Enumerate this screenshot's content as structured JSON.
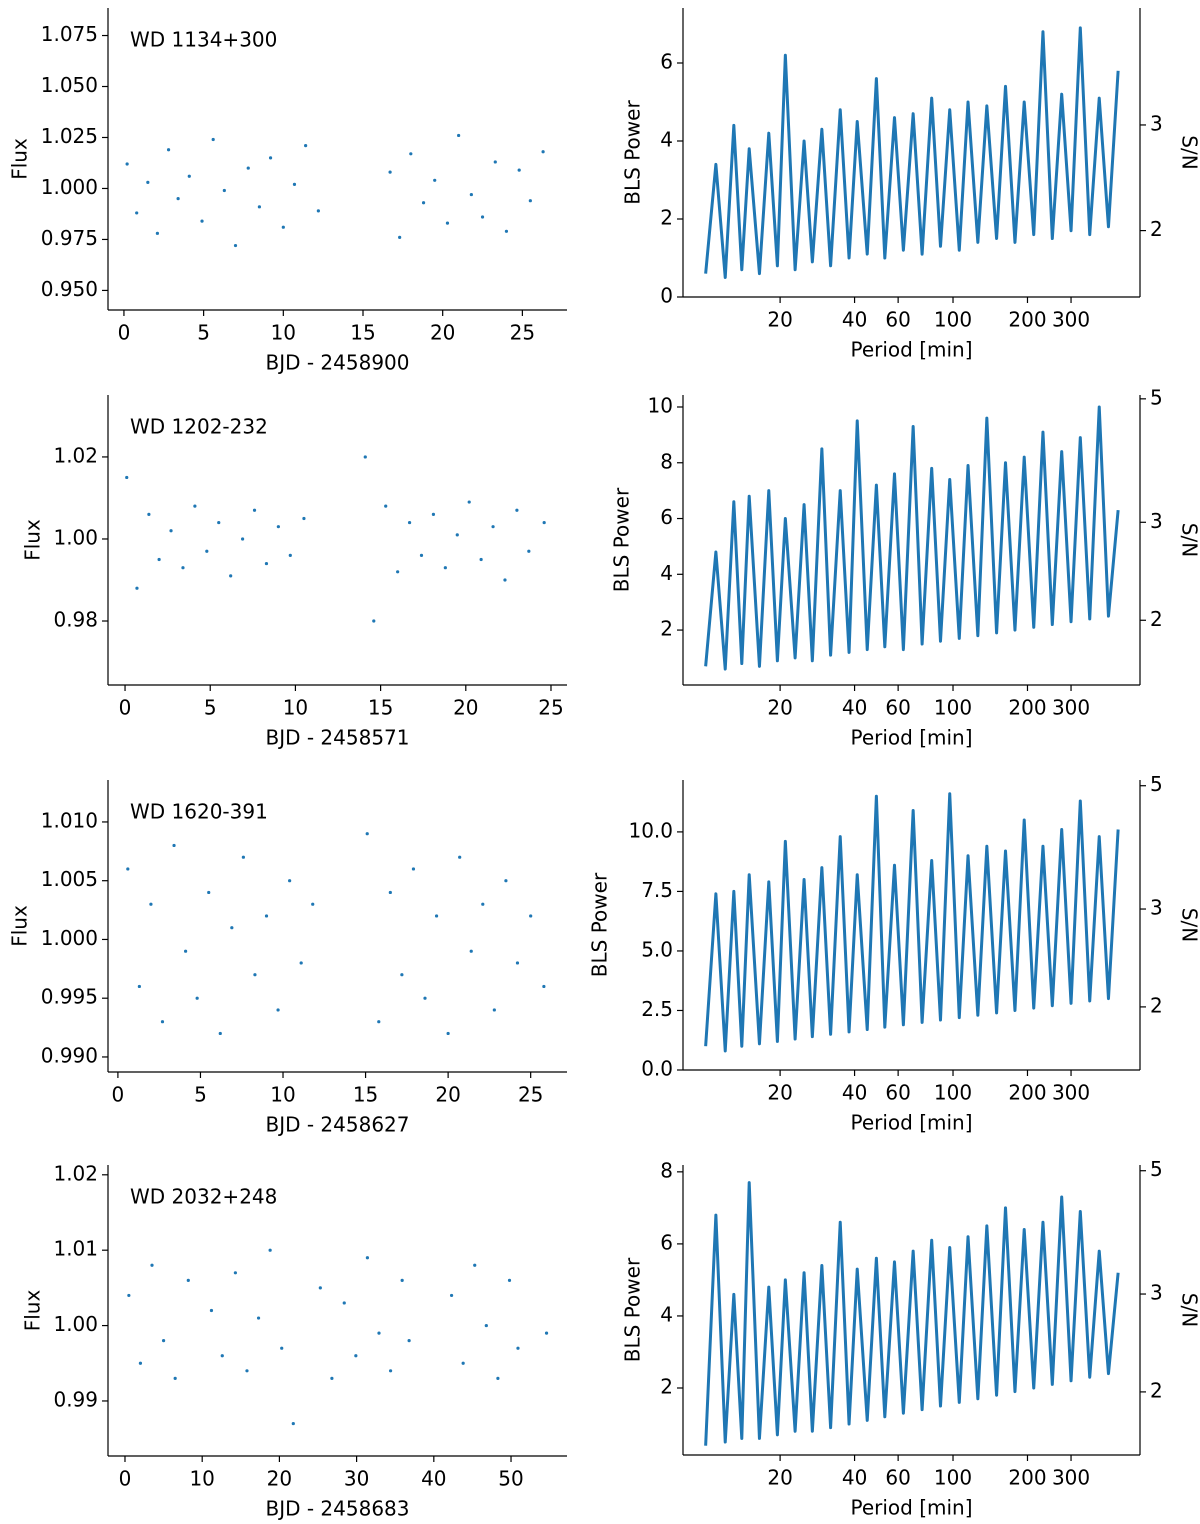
{
  "chart_data": [
    {
      "type": "scatter",
      "annotation": "WD 1134+300",
      "xlabel": "BJD - 2458900",
      "ylabel": "Flux",
      "color": "#1f77b4",
      "x": [
        0.2,
        0.8,
        1.5,
        2.1,
        2.8,
        3.4,
        4.1,
        4.9,
        5.6,
        6.3,
        7.0,
        7.8,
        8.5,
        9.2,
        10.0,
        10.7,
        11.4,
        12.2,
        16.7,
        17.3,
        18.0,
        18.8,
        19.5,
        20.3,
        21.0,
        21.8,
        22.5,
        23.3,
        24.0,
        24.8,
        25.5,
        26.3
      ],
      "values": [
        1.012,
        0.988,
        1.003,
        0.978,
        1.019,
        0.995,
        1.006,
        0.984,
        1.024,
        0.999,
        0.972,
        1.01,
        0.991,
        1.015,
        0.981,
        1.002,
        1.021,
        0.989,
        1.008,
        0.976,
        1.017,
        0.993,
        1.004,
        0.983,
        1.026,
        0.997,
        0.986,
        1.013,
        0.979,
        1.009,
        0.994,
        1.018
      ],
      "xlim": [
        -1.0,
        27.8
      ],
      "xticks": [
        0,
        5,
        10,
        15,
        20,
        25
      ],
      "ylim": [
        0.9404,
        1.0885
      ],
      "yticks": [
        {
          "value": 0.95,
          "label": "0.950"
        },
        0.975,
        {
          "value": 1.0,
          "label": "1.000"
        },
        1.025,
        {
          "value": 1.05,
          "label": "1.050"
        },
        1.075
      ]
    },
    {
      "type": "line",
      "xlabel": "Period [min]",
      "ylabel": "BLS Power",
      "y2label": "S/N",
      "color": "#1f77b4",
      "xscale": "log",
      "y2scale": "log",
      "x": [
        10,
        11,
        12,
        13,
        14,
        15,
        16.5,
        18,
        19.5,
        21,
        23,
        25,
        27,
        29.5,
        32,
        35,
        38,
        41,
        45,
        49,
        53,
        58,
        63,
        69,
        75,
        82,
        89,
        97,
        106,
        115,
        126,
        137,
        150,
        163,
        178,
        194,
        212,
        231,
        252,
        275,
        300,
        327,
        357,
        390,
        425,
        465
      ],
      "values": [
        0.6,
        3.4,
        0.5,
        4.4,
        0.7,
        3.8,
        0.6,
        4.2,
        0.8,
        6.2,
        0.7,
        4.0,
        0.9,
        4.3,
        0.8,
        4.8,
        1.0,
        4.5,
        1.1,
        5.6,
        1.0,
        4.6,
        1.2,
        4.7,
        1.1,
        5.1,
        1.3,
        4.8,
        1.2,
        5.0,
        1.4,
        4.9,
        1.5,
        5.4,
        1.4,
        5.0,
        1.6,
        6.8,
        1.5,
        5.2,
        1.7,
        6.9,
        1.6,
        5.1,
        1.8,
        5.8
      ],
      "xlim": [
        8.1,
        570
      ],
      "xticks": [
        20,
        40,
        60,
        100,
        200,
        300
      ],
      "ylim": [
        0,
        7.41
      ],
      "yticks": [
        0,
        2,
        4,
        6
      ],
      "y2lim": [
        1.55,
        4.7
      ],
      "y2ticks": [
        2,
        3
      ]
    },
    {
      "type": "scatter",
      "annotation": "WD 1202-232",
      "xlabel": "BJD - 2458571",
      "ylabel": "Flux",
      "color": "#1f77b4",
      "x": [
        0.1,
        0.7,
        1.4,
        2.0,
        2.7,
        3.4,
        4.1,
        4.8,
        5.5,
        6.2,
        6.9,
        7.6,
        8.3,
        9.0,
        9.7,
        10.5,
        14.1,
        14.6,
        15.3,
        16.0,
        16.7,
        17.4,
        18.1,
        18.8,
        19.5,
        20.2,
        20.9,
        21.6,
        22.3,
        23.0,
        23.7,
        24.6
      ],
      "values": [
        1.015,
        0.988,
        1.006,
        0.995,
        1.002,
        0.993,
        1.008,
        0.997,
        1.004,
        0.991,
        1.0,
        1.007,
        0.994,
        1.003,
        0.996,
        1.005,
        1.02,
        0.98,
        1.008,
        0.992,
        1.004,
        0.996,
        1.006,
        0.993,
        1.001,
        1.009,
        0.995,
        1.003,
        0.99,
        1.007,
        0.997,
        1.004
      ],
      "xlim": [
        -1.0,
        25.94
      ],
      "xticks": [
        0,
        5,
        10,
        15,
        20,
        25
      ],
      "ylim": [
        0.9644,
        1.0351
      ],
      "yticks": [
        0.98,
        {
          "value": 1.0,
          "label": "1.00"
        },
        1.02
      ]
    },
    {
      "type": "line",
      "xlabel": "Period [min]",
      "ylabel": "BLS Power",
      "y2label": "S/N",
      "color": "#1f77b4",
      "xscale": "log",
      "y2scale": "log",
      "x": [
        10,
        11,
        12,
        13,
        14,
        15,
        16.5,
        18,
        19.5,
        21,
        23,
        25,
        27,
        29.5,
        32,
        35,
        38,
        41,
        45,
        49,
        53,
        58,
        63,
        69,
        75,
        82,
        89,
        97,
        106,
        115,
        126,
        137,
        150,
        163,
        178,
        194,
        212,
        231,
        252,
        275,
        300,
        327,
        357,
        390,
        425,
        465
      ],
      "values": [
        0.7,
        4.8,
        0.6,
        6.6,
        0.8,
        6.8,
        0.7,
        7.0,
        0.9,
        6.0,
        1.0,
        6.5,
        0.9,
        8.5,
        1.1,
        7.0,
        1.2,
        9.5,
        1.3,
        7.2,
        1.4,
        7.6,
        1.3,
        9.3,
        1.5,
        7.8,
        1.6,
        7.4,
        1.7,
        7.9,
        1.8,
        9.6,
        1.9,
        8.0,
        2.0,
        8.2,
        2.1,
        9.1,
        2.2,
        8.4,
        2.3,
        8.9,
        2.4,
        10.0,
        2.5,
        6.3
      ],
      "xlim": [
        8.1,
        570
      ],
      "xticks": [
        20,
        40,
        60,
        100,
        200,
        300
      ],
      "ylim": [
        0.03,
        10.43
      ],
      "yticks": [
        2,
        4,
        6,
        8,
        10
      ],
      "y2lim": [
        1.53,
        5.08
      ],
      "y2ticks": [
        2,
        3,
        5
      ]
    },
    {
      "type": "scatter",
      "annotation": "WD 1620-391",
      "xlabel": "BJD - 2458627",
      "ylabel": "Flux",
      "color": "#1f77b4",
      "x": [
        0.6,
        1.3,
        2.0,
        2.7,
        3.4,
        4.1,
        4.8,
        5.5,
        6.2,
        6.9,
        7.6,
        8.3,
        9.0,
        9.7,
        10.4,
        11.1,
        11.8,
        15.1,
        15.8,
        16.5,
        17.2,
        17.9,
        18.6,
        19.3,
        20.0,
        20.7,
        21.4,
        22.1,
        22.8,
        23.5,
        24.2,
        25.0,
        25.8
      ],
      "values": [
        1.006,
        0.996,
        1.003,
        0.993,
        1.008,
        0.999,
        0.995,
        1.004,
        0.992,
        1.001,
        1.007,
        0.997,
        1.002,
        0.994,
        1.005,
        0.998,
        1.003,
        1.009,
        0.993,
        1.004,
        0.997,
        1.006,
        0.995,
        1.002,
        0.992,
        1.007,
        0.999,
        1.003,
        0.994,
        1.005,
        0.998,
        1.002,
        0.996
      ],
      "xlim": [
        -0.6,
        27.2
      ],
      "xticks": [
        0,
        5,
        10,
        15,
        20,
        25
      ],
      "ylim": [
        0.98872,
        1.01357
      ],
      "yticks": [
        {
          "value": 0.99,
          "label": "0.990"
        },
        0.995,
        {
          "value": 1.0,
          "label": "1.000"
        },
        1.005,
        {
          "value": 1.01,
          "label": "1.010"
        }
      ]
    },
    {
      "type": "line",
      "xlabel": "Period [min]",
      "ylabel": "BLS Power",
      "y2label": "S/N",
      "color": "#1f77b4",
      "xscale": "log",
      "y2scale": "log",
      "x": [
        10,
        11,
        12,
        13,
        14,
        15,
        16.5,
        18,
        19.5,
        21,
        23,
        25,
        27,
        29.5,
        32,
        35,
        38,
        41,
        45,
        49,
        53,
        58,
        63,
        69,
        75,
        82,
        89,
        97,
        106,
        115,
        126,
        137,
        150,
        163,
        178,
        194,
        212,
        231,
        252,
        275,
        300,
        327,
        357,
        390,
        425,
        465
      ],
      "values": [
        1.0,
        7.4,
        0.8,
        7.5,
        1.0,
        8.2,
        1.1,
        7.9,
        1.2,
        9.6,
        1.3,
        8.0,
        1.4,
        8.5,
        1.5,
        9.8,
        1.6,
        8.2,
        1.7,
        11.5,
        1.8,
        8.6,
        1.9,
        10.9,
        2.0,
        8.8,
        2.1,
        11.6,
        2.2,
        9.0,
        2.3,
        9.4,
        2.4,
        9.2,
        2.5,
        10.5,
        2.6,
        9.4,
        2.7,
        10.1,
        2.8,
        11.3,
        2.9,
        9.8,
        3.0,
        10.1
      ],
      "xlim": [
        8.1,
        570
      ],
      "xticks": [
        20,
        40,
        60,
        100,
        200,
        300
      ],
      "ylim": [
        0,
        12.18
      ],
      "yticks": [
        {
          "value": 0,
          "label": "0.0"
        },
        2.5,
        {
          "value": 5,
          "label": "5.0"
        },
        7.5,
        {
          "value": 10,
          "label": "10.0"
        }
      ],
      "y2lim": [
        1.54,
        5.12
      ],
      "y2ticks": [
        2,
        3,
        5
      ]
    },
    {
      "type": "scatter",
      "annotation": "WD 2032+248",
      "xlabel": "BJD - 2458683",
      "ylabel": "Flux",
      "color": "#1f77b4",
      "x": [
        0.5,
        2.0,
        3.5,
        5.0,
        6.5,
        8.2,
        11.2,
        12.6,
        14.3,
        15.8,
        17.3,
        18.8,
        20.3,
        21.8,
        25.3,
        26.8,
        28.4,
        29.9,
        31.4,
        32.9,
        34.4,
        35.9,
        36.8,
        42.3,
        43.8,
        45.3,
        46.8,
        48.3,
        49.8,
        50.9,
        54.6
      ],
      "values": [
        1.004,
        0.995,
        1.008,
        0.998,
        0.993,
        1.006,
        1.002,
        0.996,
        1.007,
        0.994,
        1.001,
        1.01,
        0.997,
        0.987,
        1.005,
        0.993,
        1.003,
        0.996,
        1.009,
        0.999,
        0.994,
        1.006,
        0.998,
        1.004,
        0.995,
        1.008,
        1.0,
        0.993,
        1.006,
        0.997,
        0.999
      ],
      "xlim": [
        -2.2,
        57.25
      ],
      "xticks": [
        0,
        10,
        20,
        30,
        40,
        50
      ],
      "ylim": [
        0.9827,
        1.0213
      ],
      "yticks": [
        0.99,
        {
          "value": 1.0,
          "label": "1.00"
        },
        1.01,
        1.02
      ]
    },
    {
      "type": "line",
      "xlabel": "Period [min]",
      "ylabel": "BLS Power",
      "y2label": "S/N",
      "color": "#1f77b4",
      "xscale": "log",
      "y2scale": "log",
      "x": [
        10,
        11,
        12,
        13,
        14,
        15,
        16.5,
        18,
        19.5,
        21,
        23,
        25,
        27,
        29.5,
        32,
        35,
        38,
        41,
        45,
        49,
        53,
        58,
        63,
        69,
        75,
        82,
        89,
        97,
        106,
        115,
        126,
        137,
        150,
        163,
        178,
        194,
        212,
        231,
        252,
        275,
        300,
        327,
        357,
        390,
        425,
        465
      ],
      "values": [
        0.4,
        6.8,
        0.5,
        4.6,
        0.6,
        7.7,
        0.6,
        4.8,
        0.7,
        5.0,
        0.8,
        5.2,
        0.8,
        5.4,
        0.9,
        6.6,
        1.0,
        5.3,
        1.1,
        5.6,
        1.2,
        5.5,
        1.3,
        5.8,
        1.4,
        6.1,
        1.5,
        5.9,
        1.6,
        6.2,
        1.7,
        6.5,
        1.8,
        7.0,
        1.9,
        6.4,
        2.0,
        6.6,
        2.1,
        7.3,
        2.2,
        6.9,
        2.3,
        5.8,
        2.4,
        5.2
      ],
      "xlim": [
        8.1,
        570
      ],
      "xticks": [
        20,
        40,
        60,
        100,
        200,
        300
      ],
      "ylim": [
        0.14,
        8.19
      ],
      "yticks": [
        2,
        4,
        6,
        8
      ],
      "y2lim": [
        1.54,
        5.12
      ],
      "y2ticks": [
        2,
        3,
        5
      ]
    }
  ]
}
